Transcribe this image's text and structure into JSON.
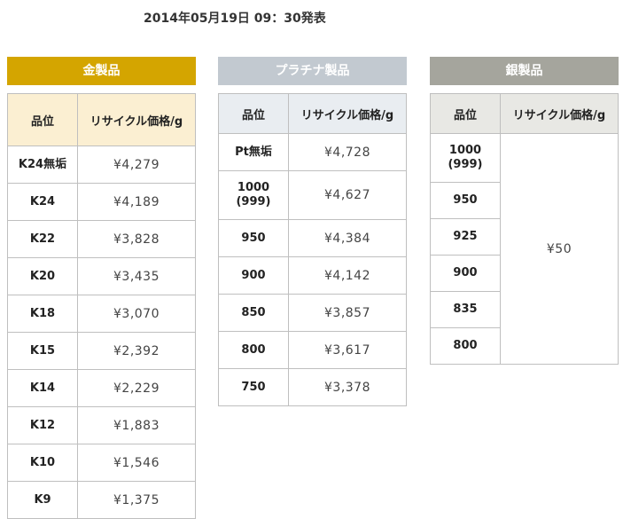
{
  "announce": "2014年05月19日 09：30発表",
  "gold": {
    "title": "金製品",
    "col_grade": "品位",
    "col_price": "リサイクル価格/g",
    "rows": [
      {
        "grade": "K24無垢",
        "price": "¥4,279"
      },
      {
        "grade": "K24",
        "price": "¥4,189"
      },
      {
        "grade": "K22",
        "price": "¥3,828"
      },
      {
        "grade": "K20",
        "price": "¥3,435"
      },
      {
        "grade": "K18",
        "price": "¥3,070"
      },
      {
        "grade": "K15",
        "price": "¥2,392"
      },
      {
        "grade": "K14",
        "price": "¥2,229"
      },
      {
        "grade": "K12",
        "price": "¥1,883"
      },
      {
        "grade": "K10",
        "price": "¥1,546"
      },
      {
        "grade": "K9",
        "price": "¥1,375"
      }
    ]
  },
  "platinum": {
    "title": "プラチナ製品",
    "col_grade": "品位",
    "col_price": "リサイクル価格/g",
    "rows": [
      {
        "grade": "Pt無垢",
        "price": "¥4,728"
      },
      {
        "grade": "1000\n(999)",
        "price": "¥4,627"
      },
      {
        "grade": "950",
        "price": "¥4,384"
      },
      {
        "grade": "900",
        "price": "¥4,142"
      },
      {
        "grade": "850",
        "price": "¥3,857"
      },
      {
        "grade": "800",
        "price": "¥3,617"
      },
      {
        "grade": "750",
        "price": "¥3,378"
      }
    ]
  },
  "silver": {
    "title": "銀製品",
    "col_grade": "品位",
    "col_price": "リサイクル価格/g",
    "price": "¥50",
    "grades": [
      "1000\n(999)",
      "950",
      "925",
      "900",
      "835",
      "800"
    ]
  }
}
